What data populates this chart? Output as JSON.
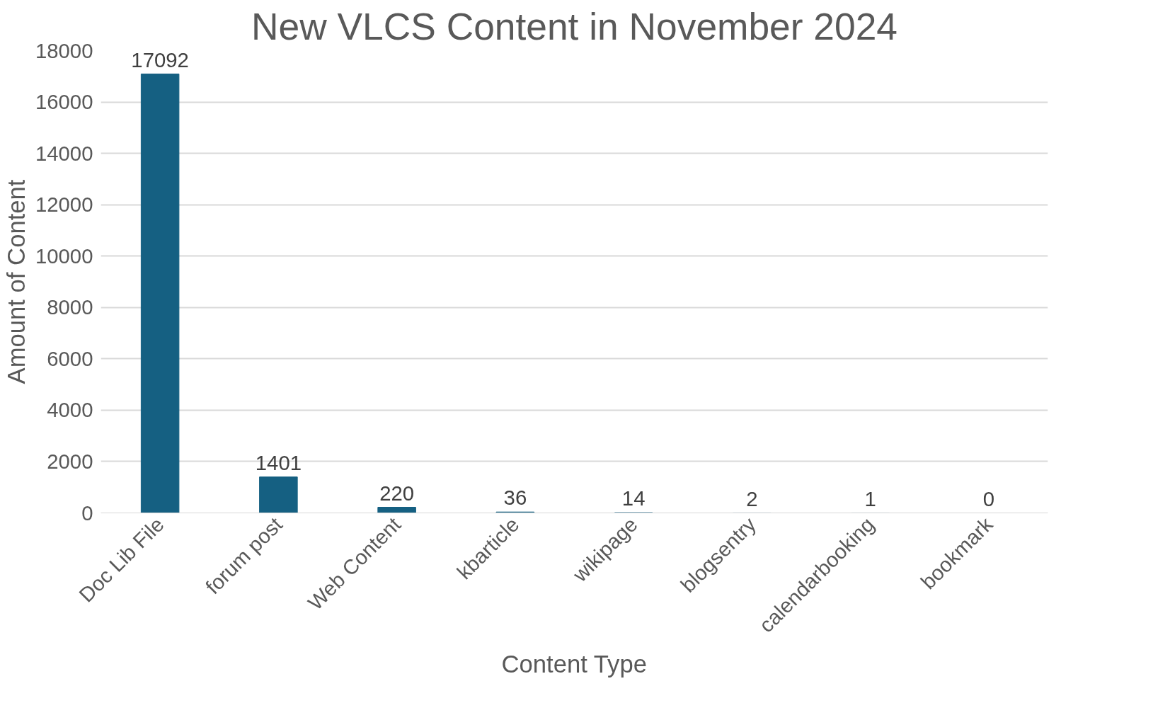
{
  "chart_data": {
    "type": "bar",
    "title": "New VLCS Content in November 2024",
    "xlabel": "Content Type",
    "ylabel": "Amount of Content",
    "categories": [
      "Doc Lib File",
      "forum post",
      "Web Content",
      "kbarticle",
      "wikipage",
      "blogsentry",
      "calendarbooking",
      "bookmark"
    ],
    "values": [
      17092,
      1401,
      220,
      36,
      14,
      2,
      1,
      0
    ],
    "color": "#156082",
    "ylim": [
      0,
      18000
    ],
    "yticks": [
      0,
      2000,
      4000,
      6000,
      8000,
      10000,
      12000,
      14000,
      16000,
      18000
    ],
    "grid": "y",
    "data_labels": true
  }
}
